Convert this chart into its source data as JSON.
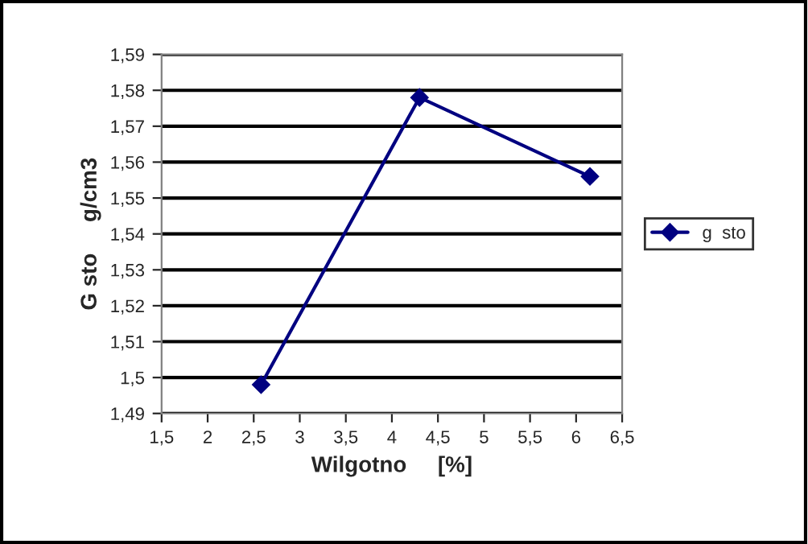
{
  "chart_data": {
    "type": "line",
    "xlabel": "Wilgotno     [%]",
    "ylabel": "G sto     g/cm3",
    "series": [
      {
        "name": "g  sto",
        "color": "#000080",
        "x": [
          2.58,
          4.3,
          6.15
        ],
        "values": [
          1.498,
          1.578,
          1.556
        ]
      }
    ],
    "xlim": [
      1.5,
      6.5
    ],
    "xticks": [
      {
        "value": 1.5,
        "label": "1,5"
      },
      2,
      {
        "value": 2.5,
        "label": "2,5"
      },
      3,
      {
        "value": 3.5,
        "label": "3,5"
      },
      4,
      {
        "value": 4.5,
        "label": "4,5"
      },
      5,
      {
        "value": 5.5,
        "label": "5,5"
      },
      6,
      {
        "value": 6.5,
        "label": "6,5"
      }
    ],
    "ylim": [
      1.49,
      1.59
    ],
    "yticks": [
      {
        "value": 1.49,
        "label": "1,49"
      },
      {
        "value": 1.5,
        "label": "1,5"
      },
      {
        "value": 1.51,
        "label": "1,51"
      },
      {
        "value": 1.52,
        "label": "1,52"
      },
      {
        "value": 1.53,
        "label": "1,53"
      },
      {
        "value": 1.54,
        "label": "1,54"
      },
      {
        "value": 1.55,
        "label": "1,55"
      },
      {
        "value": 1.56,
        "label": "1,56"
      },
      {
        "value": 1.57,
        "label": "1,57"
      },
      {
        "value": 1.58,
        "label": "1,58"
      },
      {
        "value": 1.59,
        "label": "1,59"
      }
    ],
    "grid": "y",
    "legend": "right",
    "marker": "diamond",
    "line_style": "solid"
  }
}
